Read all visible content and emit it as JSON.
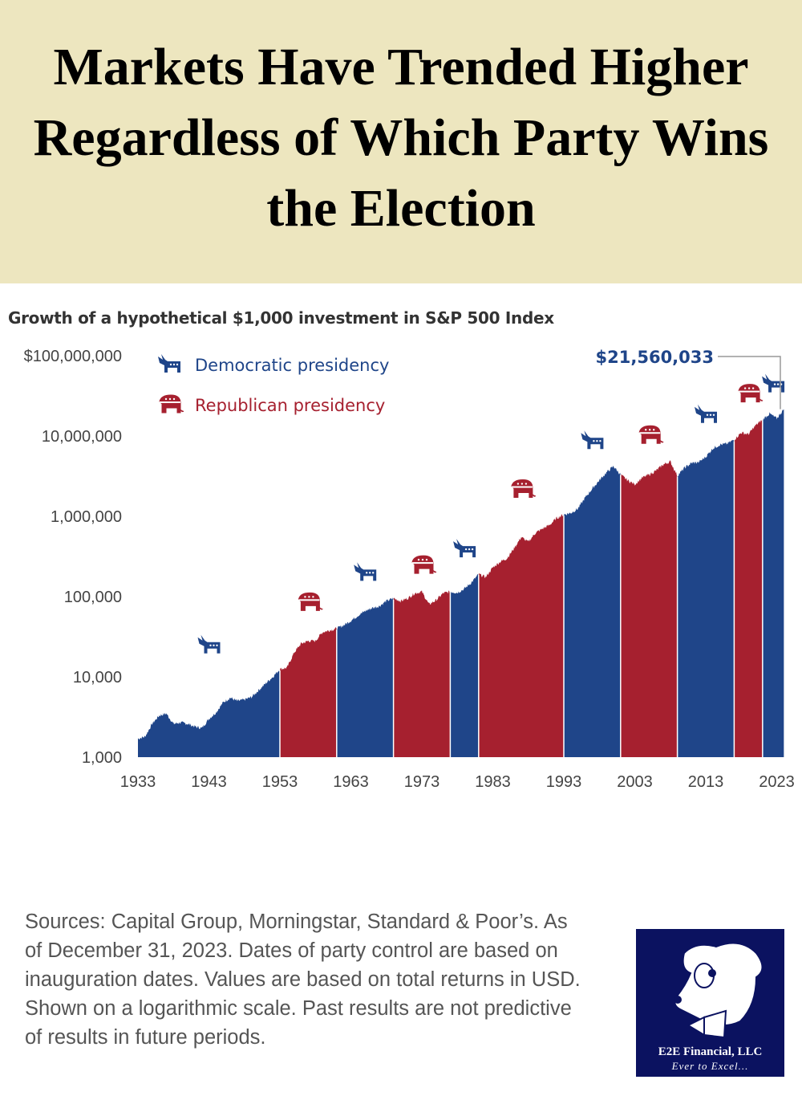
{
  "banner": {
    "title": "Markets Have Trended Higher Regardless of Which Party Wins the Election"
  },
  "chart_data": {
    "type": "area",
    "title": "Growth of a hypothetical $1,000 investment in S&P 500 Index",
    "scale": "log",
    "ylim": [
      1000,
      100000000
    ],
    "xlim": [
      1933,
      2024
    ],
    "y_ticks": [
      {
        "v": 100000000,
        "label": "$100,000,000"
      },
      {
        "v": 10000000,
        "label": "10,000,000"
      },
      {
        "v": 1000000,
        "label": "1,000,000"
      },
      {
        "v": 100000,
        "label": "100,000"
      },
      {
        "v": 10000,
        "label": "10,000"
      },
      {
        "v": 1000,
        "label": "1,000"
      }
    ],
    "x_ticks": [
      "1933",
      "1943",
      "1953",
      "1963",
      "1973",
      "1983",
      "1993",
      "2003",
      "2013",
      "2023"
    ],
    "grid": false,
    "legend_position": "top-left",
    "legend": [
      {
        "party": "D",
        "label": "Democratic presidency",
        "icon": "donkey-icon"
      },
      {
        "party": "R",
        "label": "Republican presidency",
        "icon": "elephant-icon"
      }
    ],
    "colors": {
      "D": "#1f4589",
      "R": "#a6202f"
    },
    "final_label": "$21,560,033",
    "periods": [
      {
        "start": 1933,
        "end": 1953,
        "party": "D"
      },
      {
        "start": 1953,
        "end": 1961,
        "party": "R"
      },
      {
        "start": 1961,
        "end": 1969,
        "party": "D"
      },
      {
        "start": 1969,
        "end": 1977,
        "party": "R"
      },
      {
        "start": 1977,
        "end": 1981,
        "party": "D"
      },
      {
        "start": 1981,
        "end": 1993,
        "party": "R"
      },
      {
        "start": 1993,
        "end": 2001,
        "party": "D"
      },
      {
        "start": 2001,
        "end": 2009,
        "party": "R"
      },
      {
        "start": 2009,
        "end": 2017,
        "party": "D"
      },
      {
        "start": 2017,
        "end": 2021,
        "party": "R"
      },
      {
        "start": 2021,
        "end": 2024,
        "party": "D"
      }
    ],
    "x": [
      1933,
      1934,
      1935,
      1936,
      1937,
      1938,
      1939,
      1940,
      1941,
      1942,
      1943,
      1944,
      1945,
      1946,
      1947,
      1948,
      1949,
      1950,
      1951,
      1952,
      1953,
      1954,
      1955,
      1956,
      1957,
      1958,
      1959,
      1960,
      1961,
      1962,
      1963,
      1964,
      1965,
      1966,
      1967,
      1968,
      1969,
      1970,
      1971,
      1972,
      1973,
      1974,
      1975,
      1976,
      1977,
      1978,
      1979,
      1980,
      1981,
      1982,
      1983,
      1984,
      1985,
      1986,
      1987,
      1988,
      1989,
      1990,
      1991,
      1992,
      1993,
      1994,
      1995,
      1996,
      1997,
      1998,
      1999,
      2000,
      2001,
      2002,
      2003,
      2004,
      2005,
      2006,
      2007,
      2008,
      2009,
      2010,
      2011,
      2012,
      2013,
      2014,
      2015,
      2016,
      2017,
      2018,
      2019,
      2020,
      2021,
      2022,
      2023,
      2024
    ],
    "values": [
      1700,
      1800,
      2600,
      3300,
      3500,
      2600,
      2700,
      2600,
      2400,
      2300,
      3000,
      3600,
      4800,
      5500,
      5000,
      5200,
      5600,
      6800,
      8300,
      10000,
      12500,
      13000,
      20000,
      26000,
      28000,
      28000,
      36000,
      38000,
      40000,
      44000,
      50000,
      58000,
      66000,
      72000,
      76000,
      88000,
      95000,
      88000,
      95000,
      110000,
      115000,
      80000,
      90000,
      110000,
      115000,
      112000,
      125000,
      150000,
      190000,
      175000,
      230000,
      270000,
      300000,
      400000,
      550000,
      480000,
      620000,
      700000,
      780000,
      950000,
      1050000,
      1100000,
      1250000,
      1700000,
      2200000,
      2800000,
      3500000,
      4200000,
      3300000,
      2800000,
      2500000,
      3000000,
      3300000,
      3700000,
      4400000,
      4800000,
      3200000,
      4000000,
      4600000,
      4700000,
      5500000,
      7000000,
      7800000,
      8000000,
      9000000,
      11000000,
      10500000,
      13500000,
      16000000,
      19000000,
      16500000,
      21560033
    ]
  },
  "footnote": "Sources: Capital Group, Morningstar, Standard & Poor’s. As of December 31, 2023. Dates of party control are based on inauguration dates. Values are based on total returns in USD. Shown on a logarithmic scale. Past results are not predictive of results in future periods.",
  "logo": {
    "name": "E2E Financial, LLC",
    "tagline": "Ever to Excel..."
  }
}
